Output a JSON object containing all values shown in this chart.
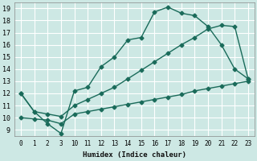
{
  "xlabel": "Humidex (Indice chaleur)",
  "bg_color": "#cde8e4",
  "grid_color": "#ffffff",
  "line_color": "#1a6b5a",
  "ylim": [
    8.5,
    19.5
  ],
  "yticks": [
    9,
    10,
    11,
    12,
    13,
    14,
    15,
    16,
    17,
    18,
    19
  ],
  "xtick_labels": [
    "0",
    "1",
    "2",
    "3",
    "10",
    "11",
    "12",
    "13",
    "14",
    "15",
    "16",
    "17",
    "18",
    "19",
    "20",
    "21",
    "22",
    "23"
  ],
  "line1_y": [
    12.0,
    10.5,
    9.5,
    8.7,
    12.2,
    12.5,
    14.2,
    15.0,
    16.4,
    16.6,
    18.7,
    19.1,
    18.6,
    18.4,
    17.5,
    16.0,
    14.0,
    13.2
  ],
  "line2_y": [
    12.0,
    10.5,
    10.3,
    10.1,
    11.0,
    11.5,
    12.0,
    12.5,
    13.2,
    13.9,
    14.6,
    15.3,
    16.0,
    16.6,
    17.3,
    17.6,
    17.5,
    13.2
  ],
  "line3_y": [
    10.0,
    9.9,
    9.8,
    9.5,
    10.3,
    10.5,
    10.7,
    10.9,
    11.1,
    11.3,
    11.5,
    11.7,
    11.9,
    12.2,
    12.4,
    12.6,
    12.8,
    13.0
  ],
  "marker": "D",
  "marker_size": 2.5,
  "line_width": 1.0
}
